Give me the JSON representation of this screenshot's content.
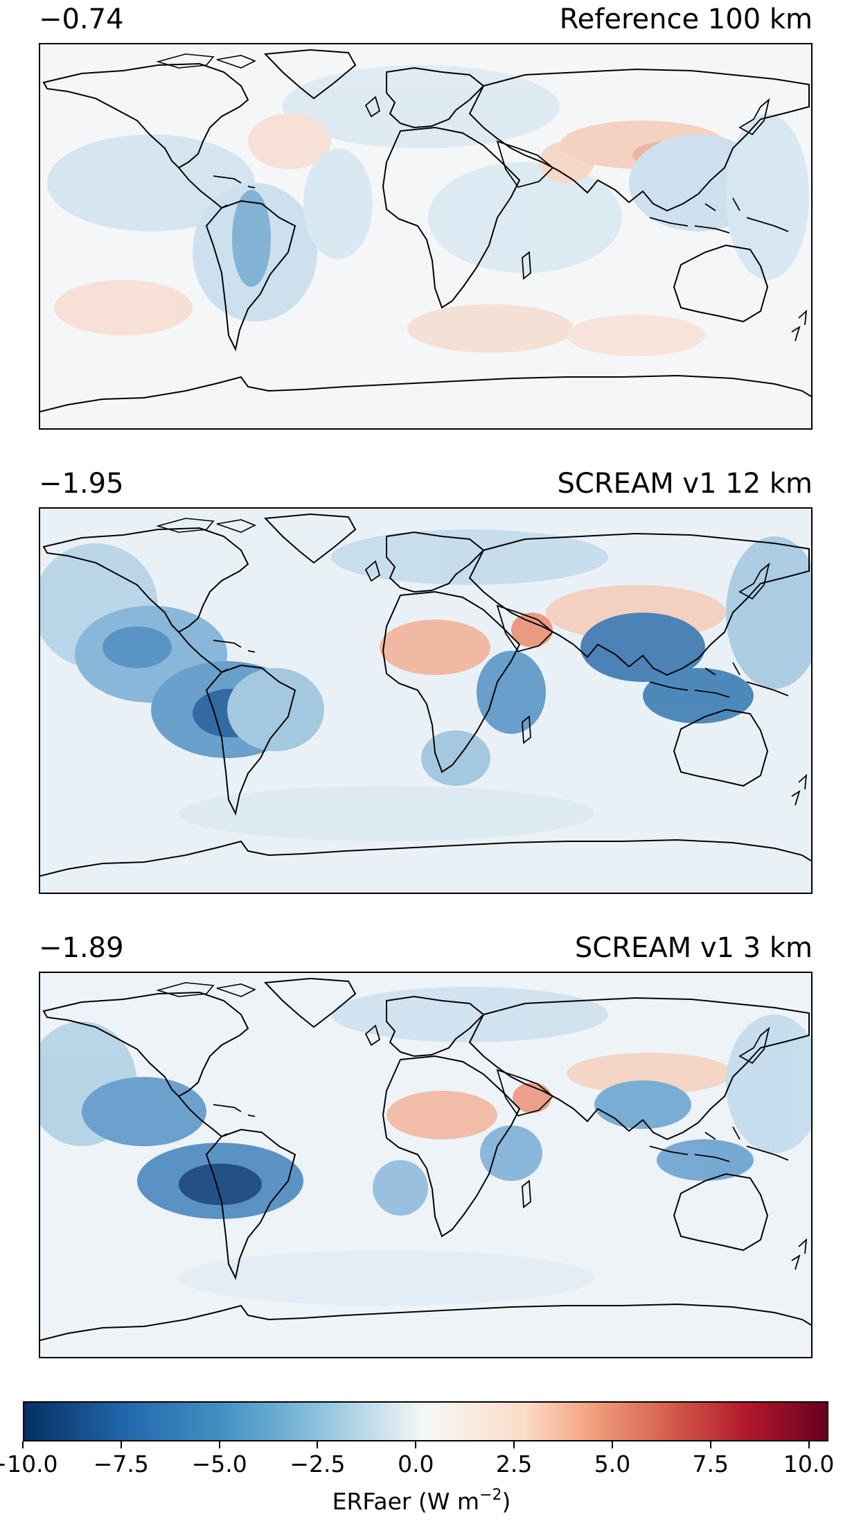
{
  "panels": [
    {
      "mean": "−0.74",
      "title": "Reference 100 km",
      "map": "ref"
    },
    {
      "mean": "−1.95",
      "title": "SCREAM v1 12 km",
      "map": "s12"
    },
    {
      "mean": "−1.89",
      "title": "SCREAM v1 3 km",
      "map": "s3"
    }
  ],
  "colorbar": {
    "min": -10,
    "max": 10.5,
    "ticks": [
      "−10.0",
      "−7.5",
      "−5.0",
      "−2.5",
      "0.0",
      "2.5",
      "5.0",
      "7.5",
      "10.0"
    ],
    "tick_values": [
      -10,
      -7.5,
      -5,
      -2.5,
      0,
      2.5,
      5,
      7.5,
      10
    ],
    "label_main": "ERFaer (W m",
    "label_exp": "−2",
    "label_close": ")",
    "colormap": "RdBu_r"
  }
}
